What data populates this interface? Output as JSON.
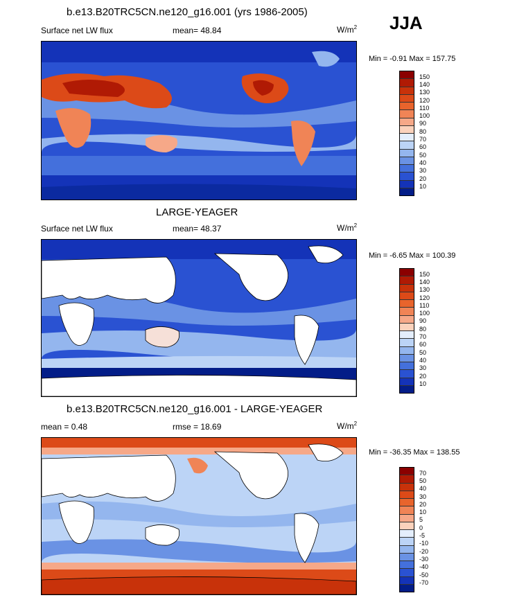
{
  "season": "JJA",
  "panels": [
    {
      "title": "b.e13.B20TRC5CN.ne120_g16.001 (yrs 1986-2005)",
      "left_label": "Surface net LW flux",
      "center_label": "mean=  48.84",
      "units": "W/m",
      "units_sup": "2",
      "minmax": "Min =  -0.91 Max = 157.75",
      "colorbar": {
        "labels": [
          "150",
          "140",
          "130",
          "120",
          "110",
          "100",
          "90",
          "80",
          "70",
          "60",
          "50",
          "40",
          "30",
          "20",
          "10"
        ],
        "colors": [
          "#8b0000",
          "#b01a04",
          "#c8320a",
          "#dc4a18",
          "#e8642c",
          "#f08456",
          "#f6a888",
          "#fbd2bc",
          "#e4eefc",
          "#bcd4f6",
          "#94b6ee",
          "#6a92e4",
          "#4470dc",
          "#2a52d2",
          "#1433b8",
          "#031d88"
        ]
      }
    },
    {
      "title": "LARGE-YEAGER",
      "left_label": "Surface net LW flux",
      "center_label": "mean=  48.37",
      "units": "W/m",
      "units_sup": "2",
      "minmax": "Min =  -6.65 Max = 100.39",
      "colorbar": {
        "labels": [
          "150",
          "140",
          "130",
          "120",
          "110",
          "100",
          "90",
          "80",
          "70",
          "60",
          "50",
          "40",
          "30",
          "20",
          "10"
        ],
        "colors": [
          "#8b0000",
          "#b01a04",
          "#c8320a",
          "#dc4a18",
          "#e8642c",
          "#f08456",
          "#f6a888",
          "#fbd2bc",
          "#e4eefc",
          "#bcd4f6",
          "#94b6ee",
          "#6a92e4",
          "#4470dc",
          "#2a52d2",
          "#1433b8",
          "#031d88"
        ]
      }
    },
    {
      "title": "b.e13.B20TRC5CN.ne120_g16.001 - LARGE-YEAGER",
      "left_label": "mean =   0.48",
      "center_label": "rmse =  18.69",
      "units": "W/m",
      "units_sup": "2",
      "minmax": "Min = -36.35 Max = 138.55",
      "colorbar": {
        "labels": [
          "70",
          "50",
          "40",
          "30",
          "20",
          "10",
          "5",
          "0",
          "-5",
          "-10",
          "-20",
          "-30",
          "-40",
          "-50",
          "-70"
        ],
        "colors": [
          "#8b0000",
          "#b01a04",
          "#c8320a",
          "#dc4a18",
          "#e8642c",
          "#f08456",
          "#f6a888",
          "#fbd2bc",
          "#e4eefc",
          "#bcd4f6",
          "#94b6ee",
          "#6a92e4",
          "#4470dc",
          "#2a52d2",
          "#1433b8",
          "#031d88"
        ]
      }
    }
  ],
  "chart_data": [
    {
      "type": "heatmap",
      "title": "b.e13.B20TRC5CN.ne120_g16.001 (yrs 1986-2005)",
      "variable": "Surface net LW flux",
      "units": "W/m^2",
      "mean": 48.84,
      "min": -0.91,
      "max": 157.75,
      "levels": [
        10,
        20,
        30,
        40,
        50,
        60,
        70,
        80,
        90,
        100,
        110,
        120,
        130,
        140,
        150
      ]
    },
    {
      "type": "heatmap",
      "title": "LARGE-YEAGER",
      "variable": "Surface net LW flux",
      "units": "W/m^2",
      "mean": 48.37,
      "min": -6.65,
      "max": 100.39,
      "levels": [
        10,
        20,
        30,
        40,
        50,
        60,
        70,
        80,
        90,
        100,
        110,
        120,
        130,
        140,
        150
      ]
    },
    {
      "type": "heatmap",
      "title": "b.e13.B20TRC5CN.ne120_g16.001 - LARGE-YEAGER",
      "units": "W/m^2",
      "mean": 0.48,
      "rmse": 18.69,
      "min": -36.35,
      "max": 138.55,
      "levels": [
        -70,
        -50,
        -40,
        -30,
        -20,
        -10,
        -5,
        0,
        5,
        10,
        20,
        30,
        40,
        50,
        70
      ]
    }
  ]
}
